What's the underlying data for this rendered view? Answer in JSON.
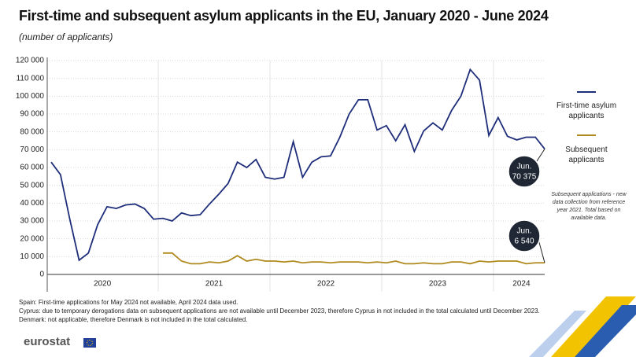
{
  "chart_data": {
    "type": "line",
    "title": "First-time and subsequent asylum applicants in the EU, January 2020 - June 2024",
    "subtitle": "(number of applicants)",
    "categories": [
      null,
      null,
      null,
      null,
      null,
      "2020",
      null,
      null,
      null,
      null,
      null,
      null,
      null,
      null,
      null,
      null,
      null,
      "2021",
      null,
      null,
      null,
      null,
      null,
      null,
      null,
      null,
      null,
      null,
      null,
      "2022",
      null,
      null,
      null,
      null,
      null,
      null,
      null,
      null,
      null,
      null,
      null,
      "2023",
      null,
      null,
      null,
      null,
      null,
      null,
      null,
      null,
      "2024",
      null,
      null,
      null
    ],
    "series": [
      {
        "name": "First-time asylum applicants",
        "color": "#1f2e7a",
        "values": [
          63000,
          56000,
          31000,
          8000,
          12000,
          28000,
          38000,
          37000,
          39000,
          39500,
          37000,
          31000,
          31500,
          30000,
          34500,
          33000,
          33500,
          39500,
          45000,
          51000,
          63000,
          60000,
          64500,
          54500,
          53500,
          54500,
          74500,
          54500,
          63000,
          66000,
          66500,
          77000,
          90000,
          98000,
          98000,
          81000,
          83500,
          75000,
          84000,
          69000,
          80500,
          85000,
          81000,
          92000,
          100000,
          115000,
          109000,
          78000,
          88000,
          77500,
          75500,
          77000,
          77000,
          70375
        ]
      },
      {
        "name": "Subsequent applicants",
        "color": "#b08a1e",
        "values": [
          null,
          null,
          null,
          null,
          null,
          null,
          null,
          null,
          null,
          null,
          null,
          null,
          12000,
          12000,
          7500,
          6000,
          6000,
          7000,
          6500,
          7500,
          10500,
          7500,
          8500,
          7500,
          7500,
          7000,
          7500,
          6500,
          7000,
          7000,
          6500,
          7000,
          7000,
          7000,
          6500,
          7000,
          6500,
          7500,
          6000,
          6000,
          6500,
          6000,
          6000,
          7000,
          7000,
          6000,
          7500,
          7000,
          7500,
          7500,
          7500,
          6000,
          6500,
          6540
        ]
      }
    ],
    "ylim": [
      0,
      120000
    ],
    "yticks": [
      0,
      {
        "value": 10000,
        "label": "10 000"
      },
      {
        "value": 20000,
        "label": "20 000"
      },
      {
        "value": 30000,
        "label": "30 000"
      },
      {
        "value": 40000,
        "label": "40 000"
      },
      {
        "value": 50000,
        "label": "50 000"
      },
      {
        "value": 60000,
        "label": "60 000"
      },
      {
        "value": 70000,
        "label": "70 000"
      },
      {
        "value": 80000,
        "label": "80 000"
      },
      {
        "value": 90000,
        "label": "90 000"
      },
      {
        "value": 100000,
        "label": "100 000"
      },
      {
        "value": 110000,
        "label": "110 000"
      },
      {
        "value": 120000,
        "label": "120 000"
      }
    ],
    "grid": true,
    "annotations": [
      {
        "series": 0,
        "lines": [
          "Jun.",
          "70 375"
        ]
      },
      {
        "series": 1,
        "lines": [
          "Jun.",
          "6 540"
        ]
      }
    ],
    "note": "Subsequent applications - new data collection from reference year 2021. Total based on available data.",
    "footnotes": [
      "Spain: First-time applications for May 2024 not available, April 2024 data used.",
      "Cyprus: due to temporary derogations data on subsequent applications are not available until December 2023, therefore Cyprus in not included in the total calculated until December 2023.",
      "Denmark: not applicable, therefore Denmark is not included in the total calculated."
    ],
    "source": "eurostat"
  }
}
